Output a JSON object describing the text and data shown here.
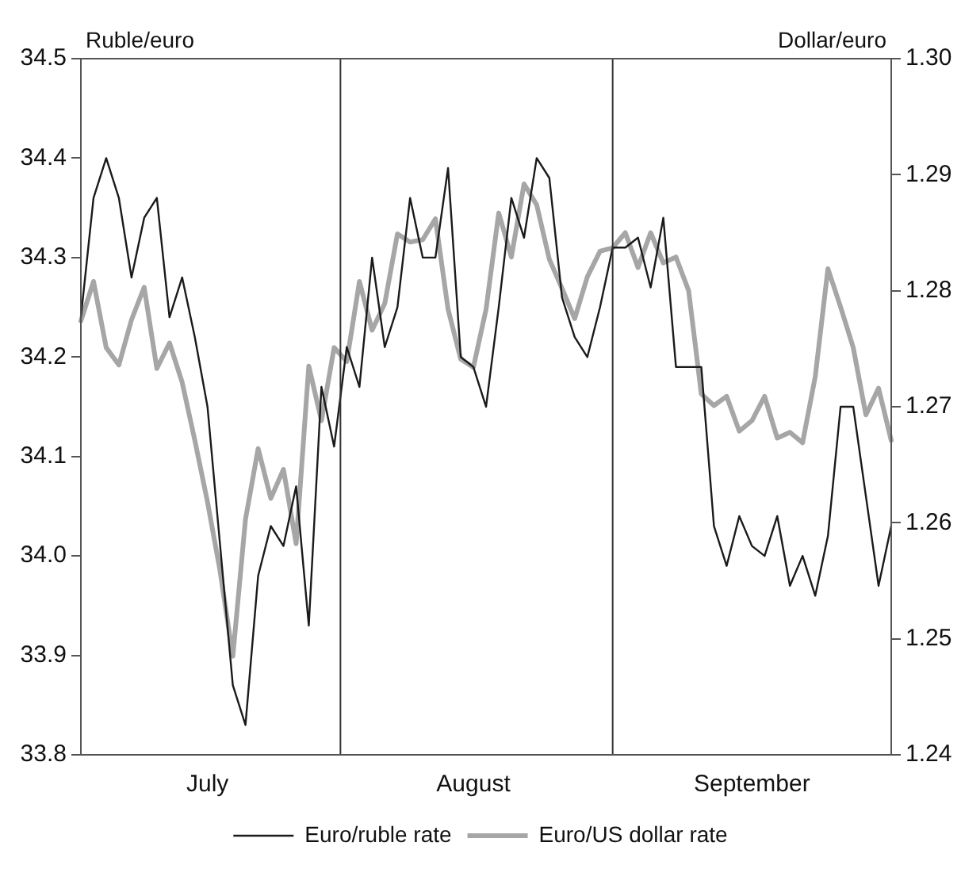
{
  "chart_data": {
    "type": "line",
    "ylabel": "Ruble/euro",
    "y2label": "Dollar/euro",
    "categories": [
      null,
      null,
      null,
      null,
      null,
      null,
      null,
      null,
      null,
      null,
      "July",
      null,
      null,
      null,
      null,
      null,
      null,
      null,
      null,
      null,
      null,
      null,
      null,
      null,
      null,
      null,
      null,
      null,
      null,
      null,
      null,
      "August",
      null,
      null,
      null,
      null,
      null,
      null,
      null,
      null,
      null,
      null,
      null,
      null,
      null,
      null,
      null,
      null,
      null,
      null,
      null,
      null,
      null,
      "September",
      null,
      null,
      null,
      null,
      null,
      null,
      null,
      null,
      null,
      null,
      null
    ],
    "ylim": [
      33.8,
      34.5
    ],
    "yticks": [
      33.8,
      33.9,
      {
        "value": 34,
        "label": "34.0"
      },
      34.1,
      34.2,
      34.3,
      34.4,
      34.5
    ],
    "y2lim": [
      1.24,
      1.3
    ],
    "y2ticks": [
      1.24,
      1.25,
      1.26,
      1.27,
      1.28,
      1.29,
      {
        "value": 1.3,
        "label": "1.30"
      }
    ],
    "grid": false,
    "legend": "bottom",
    "marker": "none",
    "line_style": "solid",
    "series": [
      {
        "name": "Euro/ruble rate",
        "color": "#1a1a1a",
        "values": [
          34.24,
          34.36,
          34.4,
          34.36,
          34.28,
          34.34,
          34.36,
          34.24,
          34.28,
          34.22,
          34.15,
          34.01,
          33.87,
          33.83,
          33.98,
          34.03,
          34.01,
          34.07,
          33.93,
          34.17,
          34.11,
          34.21,
          34.17,
          34.3,
          34.21,
          34.25,
          34.36,
          34.3,
          34.3,
          34.39,
          34.2,
          34.19,
          34.15,
          34.25,
          34.36,
          34.32,
          34.4,
          34.38,
          34.26,
          34.22,
          34.2,
          34.25,
          34.31,
          34.31,
          34.32,
          34.27,
          34.34,
          34.19,
          34.19,
          34.19,
          34.03,
          33.99,
          34.04,
          34.01,
          34,
          34.04,
          33.97,
          34,
          33.96,
          34.02,
          34.15,
          34.15,
          34.06,
          33.97,
          34.03
        ]
      },
      {
        "name": "Euro/US dollar rate",
        "color": "#a6a6a6",
        "axis": "y2",
        "values": [
          1.2774,
          1.2808,
          1.2751,
          1.2736,
          1.2775,
          1.2803,
          1.2733,
          1.2755,
          1.2721,
          1.2671,
          1.2618,
          1.2558,
          1.2485,
          1.2603,
          1.2664,
          1.2621,
          1.2646,
          1.2582,
          1.2735,
          1.2688,
          1.2751,
          1.2739,
          1.2808,
          1.2766,
          1.2789,
          1.2849,
          1.2842,
          1.2844,
          1.2862,
          1.2784,
          1.2741,
          1.2734,
          1.2784,
          1.2867,
          1.2829,
          1.2892,
          1.2874,
          1.2827,
          1.2802,
          1.2776,
          1.2812,
          1.2834,
          1.2837,
          1.285,
          1.282,
          1.285,
          1.2824,
          1.2829,
          1.28,
          1.2711,
          1.2701,
          1.2709,
          1.2679,
          1.2688,
          1.2709,
          1.2673,
          1.2678,
          1.2669,
          1.2726,
          1.2819,
          1.2786,
          1.2751,
          1.2693,
          1.2716,
          1.2671
        ]
      }
    ]
  }
}
